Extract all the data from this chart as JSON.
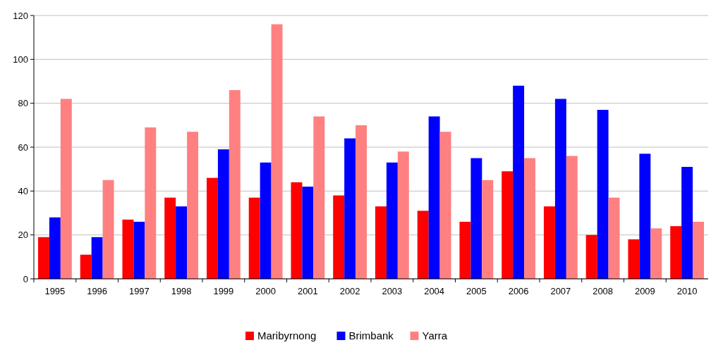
{
  "chart_data": {
    "type": "bar",
    "categories": [
      "1995",
      "1996",
      "1997",
      "1998",
      "1999",
      "2000",
      "2001",
      "2002",
      "2003",
      "2004",
      "2005",
      "2006",
      "2007",
      "2008",
      "2009",
      "2010"
    ],
    "series": [
      {
        "name": "Maribyrnong",
        "color": "#ff0000",
        "values": [
          19,
          11,
          27,
          37,
          46,
          37,
          44,
          38,
          33,
          31,
          26,
          49,
          33,
          20,
          18,
          24
        ]
      },
      {
        "name": "Brimbank",
        "color": "#0000ff",
        "values": [
          28,
          19,
          26,
          33,
          59,
          53,
          42,
          64,
          53,
          74,
          55,
          88,
          82,
          77,
          57,
          51
        ]
      },
      {
        "name": "Yarra",
        "color": "#ff8080",
        "values": [
          82,
          45,
          69,
          67,
          86,
          116,
          74,
          70,
          58,
          67,
          45,
          55,
          56,
          37,
          23,
          26
        ]
      }
    ],
    "ylim": [
      0,
      120
    ],
    "yticks": [
      0,
      20,
      40,
      60,
      80,
      100,
      120
    ],
    "grid": "y",
    "legend": "bottom"
  }
}
